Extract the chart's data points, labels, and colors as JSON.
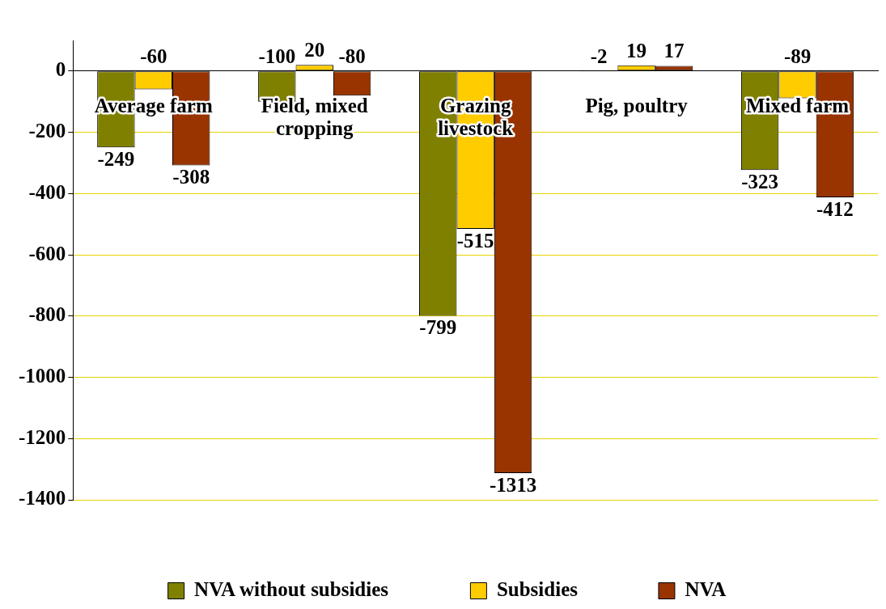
{
  "chart_data": {
    "type": "bar",
    "categories": [
      "Average farm",
      "Field, mixed cropping",
      "Grazing livestock",
      "Pig, poultry",
      "Mixed farm"
    ],
    "series": [
      {
        "name": "NVA without subsidies",
        "color": "#808000",
        "values": [
          -249,
          -100,
          -799,
          -2,
          -323
        ]
      },
      {
        "name": "Subsidies",
        "color": "#ffcc00",
        "values": [
          -60,
          20,
          -515,
          19,
          -89
        ]
      },
      {
        "name": "NVA",
        "color": "#993300",
        "values": [
          -308,
          -80,
          -1313,
          17,
          -412
        ]
      }
    ],
    "ylim": [
      -1400,
      100
    ],
    "yticks": [
      -1400,
      -1200,
      -1000,
      -800,
      -600,
      -400,
      -200,
      0
    ],
    "grid": "y",
    "legend": "bottom",
    "data_labels": true
  }
}
